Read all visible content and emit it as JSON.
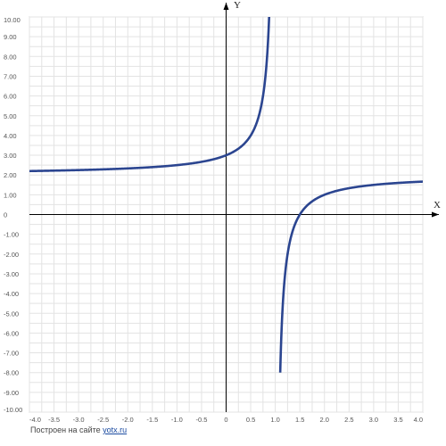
{
  "chart_data": {
    "type": "line",
    "xlabel": "X",
    "ylabel": "Y",
    "xlim": [
      -4,
      4
    ],
    "ylim": [
      -10,
      10
    ],
    "grid": true,
    "x_ticks": [
      "-4.0",
      "-3.5",
      "-3.0",
      "-2.5",
      "-2.0",
      "-1.5",
      "-1.0",
      "-0.5",
      "0",
      "0.5",
      "1.0",
      "1.5",
      "2.0",
      "2.5",
      "3.0",
      "3.5",
      "4.0"
    ],
    "y_ticks": [
      "10.00",
      "9.00",
      "8.00",
      "7.00",
      "6.00",
      "5.00",
      "4.00",
      "3.00",
      "2.00",
      "1.00",
      "0",
      "-1.00",
      "-2.00",
      "-3.00",
      "-4.00",
      "-5.00",
      "-6.00",
      "-7.00",
      "-8.00",
      "-9.00",
      "-10.00"
    ],
    "vertical_asymptote_x": 1,
    "horizontal_asymptote_y": 2,
    "series": [
      {
        "color": "#2b4590",
        "x": [
          -4,
          -3.5,
          -3,
          -2.5,
          -2,
          -1.5,
          -1,
          -0.5,
          0,
          0.25,
          0.5,
          0.6,
          0.7,
          0.75,
          0.8,
          0.85,
          0.9
        ],
        "y": [
          2.2,
          2.22,
          2.25,
          2.29,
          2.33,
          2.4,
          2.5,
          2.67,
          3,
          3.33,
          4,
          4.5,
          5.33,
          6,
          7,
          8.67,
          12
        ]
      },
      {
        "color": "#2b4590",
        "x": [
          1.1,
          1.15,
          1.2,
          1.25,
          1.3,
          1.4,
          1.5,
          1.75,
          2,
          2.5,
          3,
          3.5,
          4
        ],
        "y": [
          -8,
          -4.67,
          -3,
          -2,
          -1.33,
          -0.5,
          0,
          0.67,
          1,
          1.33,
          1.5,
          1.6,
          1.67
        ]
      }
    ]
  },
  "footer": {
    "prefix": "Построен на сайте",
    "link": "yotx.ru"
  }
}
